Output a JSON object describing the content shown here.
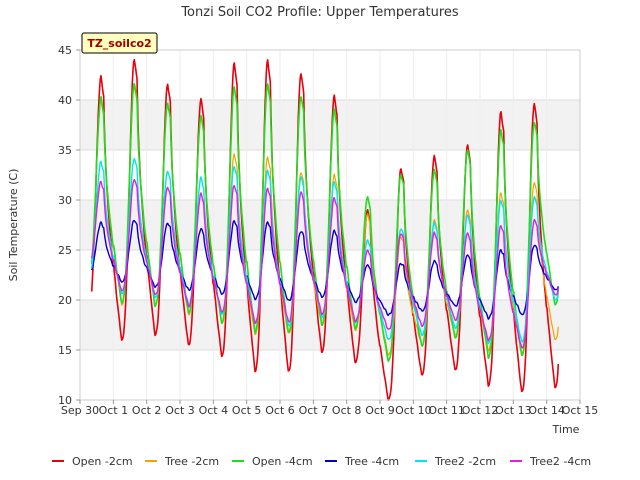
{
  "chart_data": {
    "type": "line",
    "title": "Tonzi Soil CO2 Profile: Upper Temperatures",
    "xlabel": "Time",
    "ylabel": "Soil Temperature (C)",
    "badge": "TZ_soilco2",
    "xlim": [
      0,
      15
    ],
    "ylim": [
      10,
      45
    ],
    "x_ticks": [
      0,
      1,
      2,
      3,
      4,
      5,
      6,
      7,
      8,
      9,
      10,
      11,
      12,
      13,
      14,
      15
    ],
    "x_tick_labels": [
      "Sep 30",
      "Oct 1",
      "Oct 2",
      "Oct 3",
      "Oct 4",
      "Oct 5",
      "Oct 6",
      "Oct 7",
      "Oct 8",
      "Oct 9",
      "Oct 10",
      "Oct 11",
      "Oct 12",
      "Oct 13",
      "Oct 14",
      "Oct 15"
    ],
    "y_ticks": [
      10,
      15,
      20,
      25,
      30,
      35,
      40,
      45
    ],
    "grid": true,
    "legend_position": "bottom",
    "x_units": "days since Sep 30",
    "x_start": 0.35,
    "x_end": 14.35,
    "peak_phase": 0.63,
    "series": [
      {
        "name": "Open -2cm",
        "color": "#e8000b",
        "width": 1.6,
        "min": [
          18.8,
          16.0,
          16.5,
          15.5,
          14.4,
          12.9,
          12.8,
          14.8,
          13.8,
          10.0,
          12.5,
          13.0,
          11.5,
          10.8,
          11.2
        ],
        "max": [
          42.3,
          44.1,
          41.6,
          40.1,
          43.7,
          44.0,
          42.7,
          40.4,
          29.0,
          33.2,
          34.4,
          35.5,
          38.8,
          39.7
        ]
      },
      {
        "name": "Tree -2cm",
        "color": "#f5a100",
        "width": 1.2,
        "min": [
          21.5,
          19.5,
          19.4,
          18.5,
          17.7,
          16.6,
          16.6,
          17.5,
          17.0,
          14.5,
          15.5,
          16.5,
          15.0,
          14.7,
          16.0
        ],
        "max": [
          40.0,
          41.4,
          39.6,
          38.3,
          34.6,
          34.3,
          32.8,
          32.5,
          28.6,
          26.4,
          28.0,
          29.0,
          30.7,
          31.8
        ]
      },
      {
        "name": "Open -4cm",
        "color": "#1ddf1d",
        "width": 1.6,
        "min": [
          22.0,
          19.7,
          19.4,
          18.7,
          17.7,
          16.8,
          16.7,
          17.5,
          17.2,
          13.9,
          15.4,
          16.2,
          14.3,
          14.4,
          19.5
        ],
        "max": [
          40.2,
          41.7,
          39.7,
          38.4,
          41.3,
          41.6,
          40.4,
          39.0,
          30.3,
          32.6,
          33.0,
          35.0,
          37.0,
          37.8
        ]
      },
      {
        "name": "Tree -4cm",
        "color": "#0000cd",
        "width": 1.4,
        "min": [
          22.5,
          21.8,
          21.3,
          21.0,
          20.6,
          20.1,
          19.9,
          20.3,
          19.8,
          18.5,
          18.9,
          19.4,
          18.2,
          18.5,
          21.0
        ],
        "max": [
          27.7,
          28.0,
          27.7,
          27.1,
          27.9,
          27.8,
          26.9,
          26.9,
          23.5,
          23.7,
          23.9,
          24.5,
          25.0,
          25.5
        ]
      },
      {
        "name": "Tree2 -2cm",
        "color": "#00e5ee",
        "width": 1.4,
        "min": [
          22.2,
          20.6,
          20.2,
          19.5,
          18.6,
          17.7,
          17.4,
          18.3,
          17.8,
          16.0,
          16.5,
          17.2,
          15.7,
          15.8,
          20.0
        ],
        "max": [
          33.8,
          34.2,
          32.9,
          32.2,
          33.4,
          33.0,
          32.3,
          31.8,
          26.0,
          27.2,
          27.7,
          28.5,
          30.0,
          30.3
        ]
      },
      {
        "name": "Tree2 -4cm",
        "color": "#e61ce6",
        "width": 1.4,
        "min": [
          23.5,
          20.9,
          20.5,
          19.4,
          18.8,
          17.7,
          17.8,
          18.6,
          17.9,
          17.0,
          17.4,
          18.0,
          16.0,
          15.2,
          20.5
        ],
        "max": [
          31.8,
          32.1,
          31.3,
          30.6,
          31.5,
          31.2,
          30.8,
          30.2,
          25.0,
          26.7,
          26.7,
          26.7,
          27.5,
          28.0
        ]
      }
    ]
  }
}
